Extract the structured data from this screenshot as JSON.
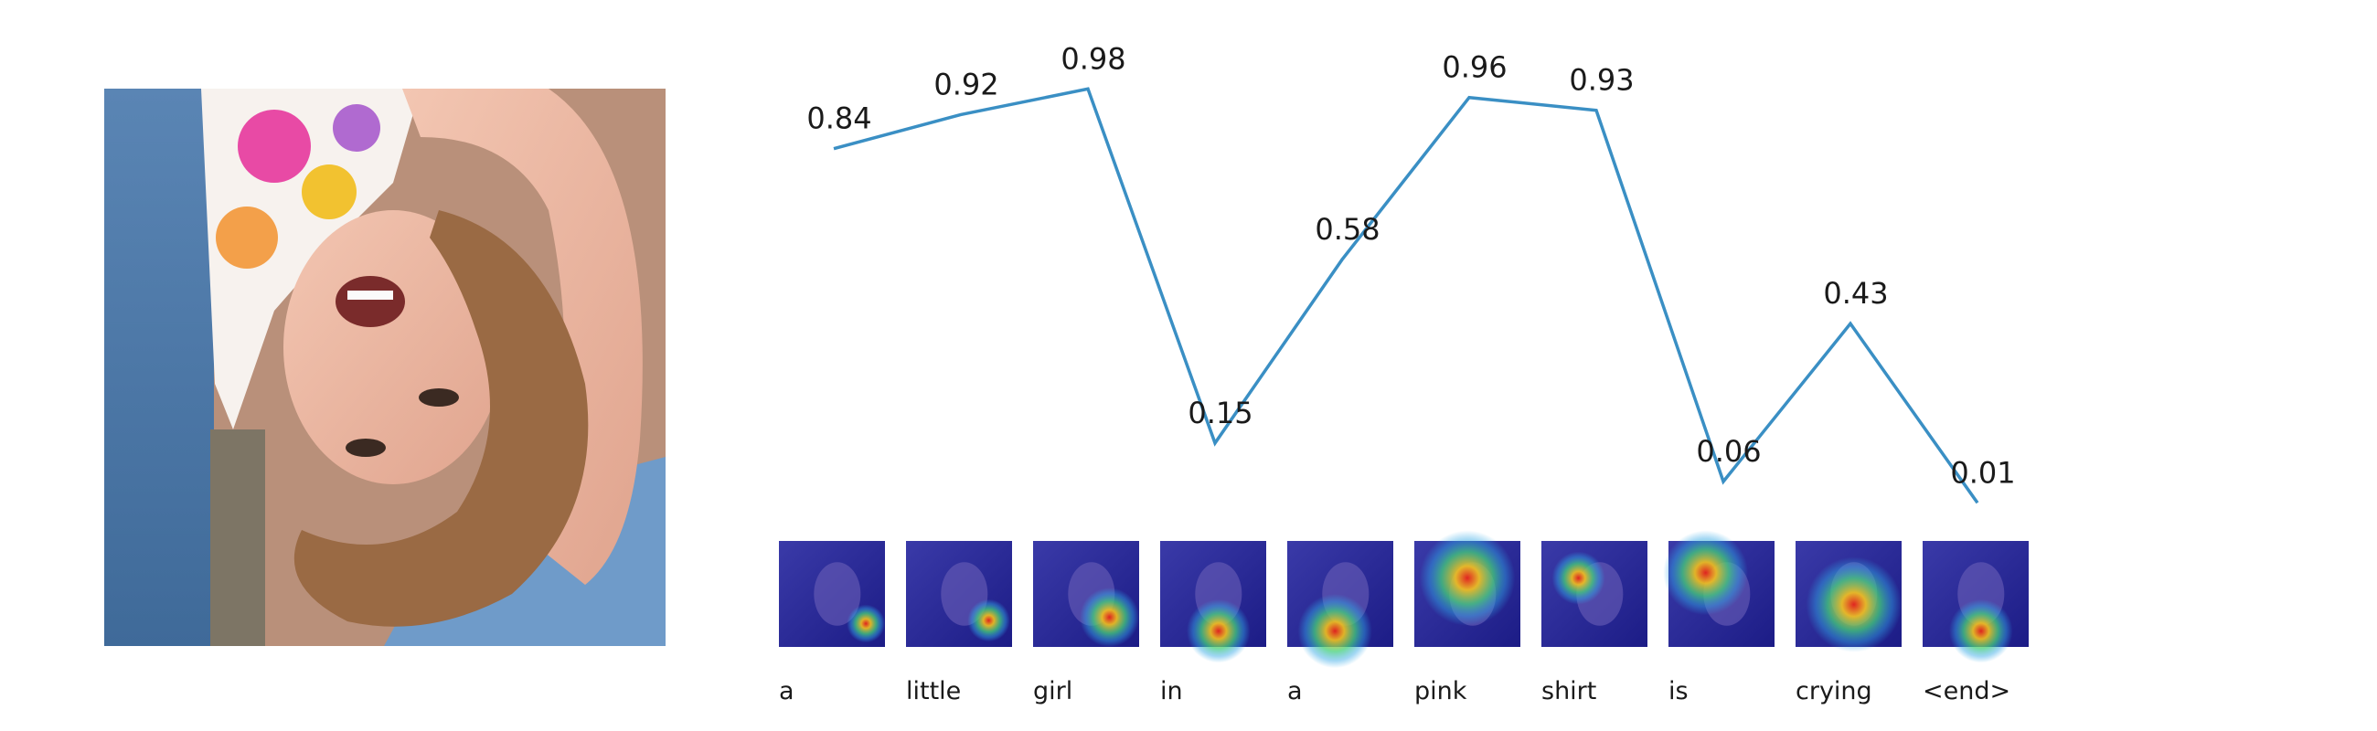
{
  "chart_data": {
    "type": "line",
    "categories": [
      "a",
      "little",
      "girl",
      "in",
      "a",
      "pink",
      "shirt",
      "is",
      "crying",
      "<end>"
    ],
    "series": [
      {
        "values": [
          0.84,
          0.92,
          0.98,
          0.15,
          0.58,
          0.96,
          0.93,
          0.06,
          0.43,
          0.01
        ]
      }
    ],
    "data_labels": [
      "0.84",
      "0.92",
      "0.98",
      "0.15",
      "0.58",
      "0.96",
      "0.93",
      "0.06",
      "0.43",
      "0.01"
    ],
    "ylim": [
      0,
      1
    ],
    "grid": false,
    "axes_visible": false,
    "line_color": "#3a8fc4"
  },
  "images": {
    "main_photo": "photo of a laughing girl upside down",
    "attention_maps": [
      "a",
      "little",
      "girl",
      "in",
      "a",
      "pink",
      "shirt",
      "is",
      "crying",
      "<end>"
    ]
  }
}
